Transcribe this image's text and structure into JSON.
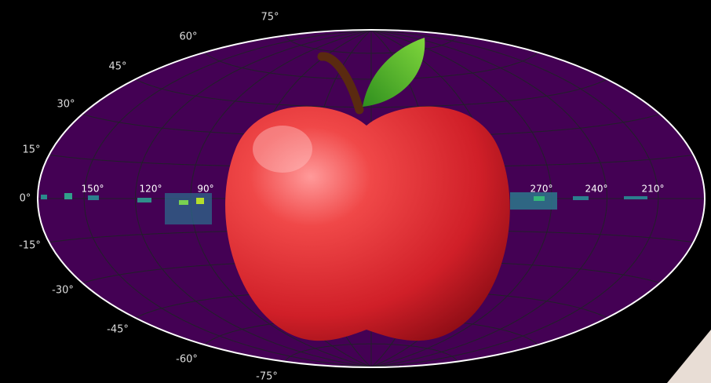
{
  "latitude_labels": [
    "75°",
    "60°",
    "45°",
    "30°",
    "15°",
    "0°",
    "-15°",
    "-30°",
    "-45°",
    "-60°",
    "-75°"
  ],
  "longitude_labels": [
    "150°",
    "120°",
    "90°",
    "270°",
    "240°",
    "210°"
  ]
}
